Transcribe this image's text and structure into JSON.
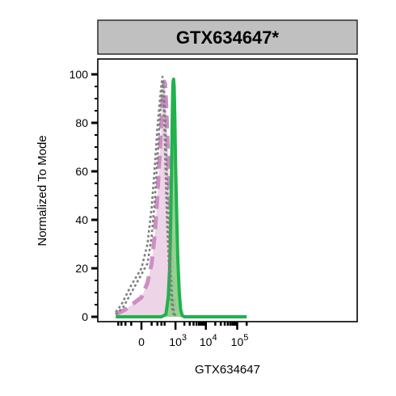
{
  "chart_data": {
    "type": "area",
    "title": "GTX634647*",
    "xlabel": "GTX634647",
    "ylabel": "Normalized To Mode",
    "x_scale": "biexponential",
    "xlim": [
      -500,
      200000
    ],
    "ylim": [
      0,
      100
    ],
    "x_ticks": [
      {
        "value": 0,
        "base": "0",
        "exp": ""
      },
      {
        "value": 1000,
        "base": "10",
        "exp": "3"
      },
      {
        "value": 10000,
        "base": "10",
        "exp": "4"
      },
      {
        "value": 100000,
        "base": "10",
        "exp": "5"
      }
    ],
    "y_ticks": [
      "0",
      "20",
      "40",
      "60",
      "80",
      "100"
    ],
    "colors": {
      "banner_fill": "#c0c0c0",
      "pink_fill": "#ecd3e6",
      "pink_line": "#cc8ec4",
      "green_fill": "#8fd08d",
      "green_line": "#22b14c",
      "gray_line": "#7f7f7f"
    },
    "series": [
      {
        "style": "dotted-gray-outer",
        "points": [
          [
            -500,
            2
          ],
          [
            -300,
            5
          ],
          [
            -100,
            13
          ],
          [
            0,
            20
          ],
          [
            50,
            30
          ],
          [
            100,
            45
          ],
          [
            150,
            62
          ],
          [
            200,
            78
          ],
          [
            250,
            88
          ],
          [
            300,
            96
          ],
          [
            330,
            99
          ],
          [
            360,
            90
          ],
          [
            400,
            75
          ],
          [
            450,
            55
          ],
          [
            500,
            38
          ],
          [
            600,
            18
          ],
          [
            700,
            7
          ],
          [
            800,
            2
          ],
          [
            950,
            0
          ]
        ]
      },
      {
        "style": "dotted-gray-inner",
        "points": [
          [
            -500,
            1
          ],
          [
            -250,
            4
          ],
          [
            -50,
            13
          ],
          [
            50,
            22
          ],
          [
            100,
            33
          ],
          [
            150,
            48
          ],
          [
            200,
            65
          ],
          [
            250,
            80
          ],
          [
            300,
            91
          ],
          [
            350,
            97
          ],
          [
            380,
            93
          ],
          [
            420,
            82
          ],
          [
            480,
            62
          ],
          [
            550,
            42
          ],
          [
            650,
            22
          ],
          [
            750,
            10
          ],
          [
            850,
            3
          ],
          [
            1000,
            0
          ]
        ]
      },
      {
        "style": "pink-filled-dashed",
        "points": [
          [
            -500,
            1
          ],
          [
            -200,
            3
          ],
          [
            0,
            8
          ],
          [
            50,
            14
          ],
          [
            100,
            22
          ],
          [
            150,
            34
          ],
          [
            200,
            50
          ],
          [
            250,
            66
          ],
          [
            300,
            80
          ],
          [
            350,
            92
          ],
          [
            390,
            97
          ],
          [
            420,
            96
          ],
          [
            460,
            88
          ],
          [
            520,
            72
          ],
          [
            600,
            55
          ],
          [
            700,
            35
          ],
          [
            800,
            17
          ],
          [
            900,
            6
          ],
          [
            1000,
            2
          ],
          [
            1200,
            0
          ]
        ]
      },
      {
        "style": "green-filled-solid",
        "points": [
          [
            -500,
            0
          ],
          [
            300,
            0
          ],
          [
            450,
            1
          ],
          [
            550,
            8
          ],
          [
            620,
            20
          ],
          [
            680,
            40
          ],
          [
            730,
            62
          ],
          [
            760,
            78
          ],
          [
            790,
            90
          ],
          [
            820,
            97
          ],
          [
            860,
            98
          ],
          [
            900,
            95
          ],
          [
            950,
            82
          ],
          [
            1000,
            65
          ],
          [
            1100,
            42
          ],
          [
            1200,
            24
          ],
          [
            1350,
            10
          ],
          [
            1500,
            3
          ],
          [
            1700,
            0.5
          ],
          [
            2000,
            0
          ],
          [
            200000,
            0
          ]
        ]
      }
    ]
  }
}
